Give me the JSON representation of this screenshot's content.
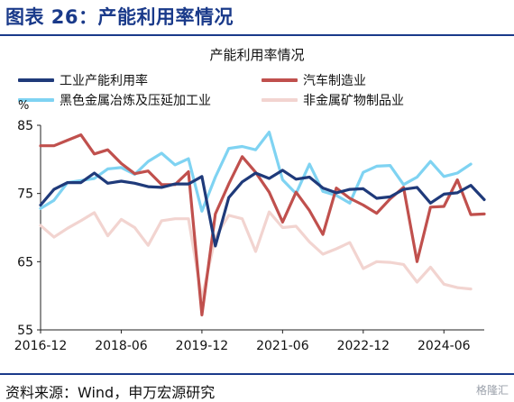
{
  "header": {
    "title": "图表 26：产能利用率情况"
  },
  "footer": {
    "source": "资料来源：Wind，申万宏源研究",
    "watermark": "格隆汇"
  },
  "chart_data": {
    "type": "line",
    "title": "产能利用率情况",
    "ylabel": "%",
    "xlabel": "",
    "ylim": [
      55,
      85
    ],
    "yticks": [
      55,
      65,
      75,
      85
    ],
    "xlim": [
      "2016-12",
      "2025-03"
    ],
    "xtick_labels": [
      "2016-12",
      "2018-06",
      "2019-12",
      "2021-06",
      "2022-12",
      "2024-06"
    ],
    "grid": false,
    "legend_position": "top",
    "series": [
      {
        "name": "工业产能利用率",
        "color": "#1f3a7a",
        "points": [
          [
            "2016-12",
            73.3
          ],
          [
            "2017-03",
            75.6
          ],
          [
            "2017-06",
            76.6
          ],
          [
            "2017-09",
            76.6
          ],
          [
            "2017-12",
            78.0
          ],
          [
            "2018-03",
            76.5
          ],
          [
            "2018-06",
            76.8
          ],
          [
            "2018-09",
            76.5
          ],
          [
            "2018-12",
            76.0
          ],
          [
            "2019-03",
            75.9
          ],
          [
            "2019-06",
            76.4
          ],
          [
            "2019-09",
            76.4
          ],
          [
            "2019-12",
            77.5
          ],
          [
            "2020-03",
            67.3
          ],
          [
            "2020-06",
            74.4
          ],
          [
            "2020-09",
            76.7
          ],
          [
            "2020-12",
            78.0
          ],
          [
            "2021-03",
            77.2
          ],
          [
            "2021-06",
            78.4
          ],
          [
            "2021-09",
            77.1
          ],
          [
            "2021-12",
            77.4
          ],
          [
            "2022-03",
            75.8
          ],
          [
            "2022-06",
            75.1
          ],
          [
            "2022-09",
            75.6
          ],
          [
            "2022-12",
            75.7
          ],
          [
            "2023-03",
            74.3
          ],
          [
            "2023-06",
            74.5
          ],
          [
            "2023-09",
            75.6
          ],
          [
            "2023-12",
            75.9
          ],
          [
            "2024-03",
            73.6
          ],
          [
            "2024-06",
            74.9
          ],
          [
            "2024-09",
            75.1
          ],
          [
            "2024-12",
            76.2
          ],
          [
            "2025-03",
            74.1
          ]
        ]
      },
      {
        "name": "汽车制造业",
        "color": "#c0504d",
        "points": [
          [
            "2016-12",
            82.0
          ],
          [
            "2017-03",
            82.0
          ],
          [
            "2017-06",
            82.8
          ],
          [
            "2017-09",
            83.6
          ],
          [
            "2017-12",
            80.8
          ],
          [
            "2018-03",
            81.4
          ],
          [
            "2018-06",
            79.4
          ],
          [
            "2018-09",
            77.9
          ],
          [
            "2018-12",
            78.3
          ],
          [
            "2019-03",
            76.3
          ],
          [
            "2019-06",
            76.3
          ],
          [
            "2019-09",
            78.2
          ],
          [
            "2019-12",
            57.2
          ],
          [
            "2020-03",
            72.0
          ],
          [
            "2020-06",
            76.4
          ],
          [
            "2020-09",
            80.4
          ],
          [
            "2020-12",
            78.1
          ],
          [
            "2021-03",
            75.2
          ],
          [
            "2021-06",
            70.8
          ],
          [
            "2021-09",
            75.2
          ],
          [
            "2021-12",
            72.5
          ],
          [
            "2022-03",
            69.0
          ],
          [
            "2022-06",
            75.8
          ],
          [
            "2022-09",
            74.3
          ],
          [
            "2022-12",
            73.3
          ],
          [
            "2023-03",
            72.1
          ],
          [
            "2023-06",
            74.2
          ],
          [
            "2023-09",
            75.9
          ],
          [
            "2023-12",
            65.0
          ],
          [
            "2024-03",
            73.0
          ],
          [
            "2024-06",
            73.1
          ],
          [
            "2024-09",
            77.0
          ],
          [
            "2024-12",
            71.9
          ],
          [
            "2025-03",
            72.0
          ]
        ]
      },
      {
        "name": "黑色金属冶炼及压延加工业",
        "color": "#7fd3f2",
        "points": [
          [
            "2016-12",
            72.8
          ],
          [
            "2017-03",
            74.0
          ],
          [
            "2017-06",
            76.6
          ],
          [
            "2017-09",
            76.9
          ],
          [
            "2017-12",
            77.2
          ],
          [
            "2018-03",
            78.6
          ],
          [
            "2018-06",
            78.8
          ],
          [
            "2018-09",
            77.8
          ],
          [
            "2018-12",
            79.7
          ],
          [
            "2019-03",
            80.9
          ],
          [
            "2019-06",
            79.2
          ],
          [
            "2019-09",
            80.1
          ],
          [
            "2019-12",
            72.4
          ],
          [
            "2020-03",
            77.4
          ],
          [
            "2020-06",
            81.6
          ],
          [
            "2020-09",
            81.9
          ],
          [
            "2020-12",
            81.4
          ],
          [
            "2021-03",
            84.0
          ],
          [
            "2021-06",
            77.0
          ],
          [
            "2021-09",
            75.0
          ],
          [
            "2021-12",
            79.3
          ],
          [
            "2022-03",
            75.3
          ],
          [
            "2022-06",
            74.7
          ],
          [
            "2022-09",
            73.6
          ],
          [
            "2022-12",
            78.1
          ],
          [
            "2023-03",
            79.0
          ],
          [
            "2023-06",
            79.1
          ],
          [
            "2023-09",
            76.3
          ],
          [
            "2023-12",
            77.4
          ],
          [
            "2024-03",
            79.7
          ],
          [
            "2024-06",
            77.5
          ],
          [
            "2024-09",
            78.0
          ],
          [
            "2024-12",
            79.3
          ]
        ]
      },
      {
        "name": "非金属矿物制品业",
        "color": "#f2d4d0",
        "points": [
          [
            "2016-12",
            70.3
          ],
          [
            "2017-03",
            68.6
          ],
          [
            "2017-06",
            69.9
          ],
          [
            "2017-09",
            71.0
          ],
          [
            "2017-12",
            72.2
          ],
          [
            "2018-03",
            68.8
          ],
          [
            "2018-06",
            71.2
          ],
          [
            "2018-09",
            70.0
          ],
          [
            "2018-12",
            67.4
          ],
          [
            "2019-03",
            71.0
          ],
          [
            "2019-06",
            71.3
          ],
          [
            "2019-09",
            71.3
          ],
          [
            "2019-12",
            59.6
          ],
          [
            "2020-03",
            68.6
          ],
          [
            "2020-06",
            71.8
          ],
          [
            "2020-09",
            71.3
          ],
          [
            "2020-12",
            66.5
          ],
          [
            "2021-03",
            72.3
          ],
          [
            "2021-06",
            70.0
          ],
          [
            "2021-09",
            70.2
          ],
          [
            "2021-12",
            67.9
          ],
          [
            "2022-03",
            66.1
          ],
          [
            "2022-06",
            66.9
          ],
          [
            "2022-09",
            67.8
          ],
          [
            "2022-12",
            64.0
          ],
          [
            "2023-03",
            65.0
          ],
          [
            "2023-06",
            64.9
          ],
          [
            "2023-09",
            64.6
          ],
          [
            "2023-12",
            62.0
          ],
          [
            "2024-03",
            64.2
          ],
          [
            "2024-06",
            61.7
          ],
          [
            "2024-09",
            61.2
          ],
          [
            "2024-12",
            61.0
          ]
        ]
      }
    ]
  }
}
